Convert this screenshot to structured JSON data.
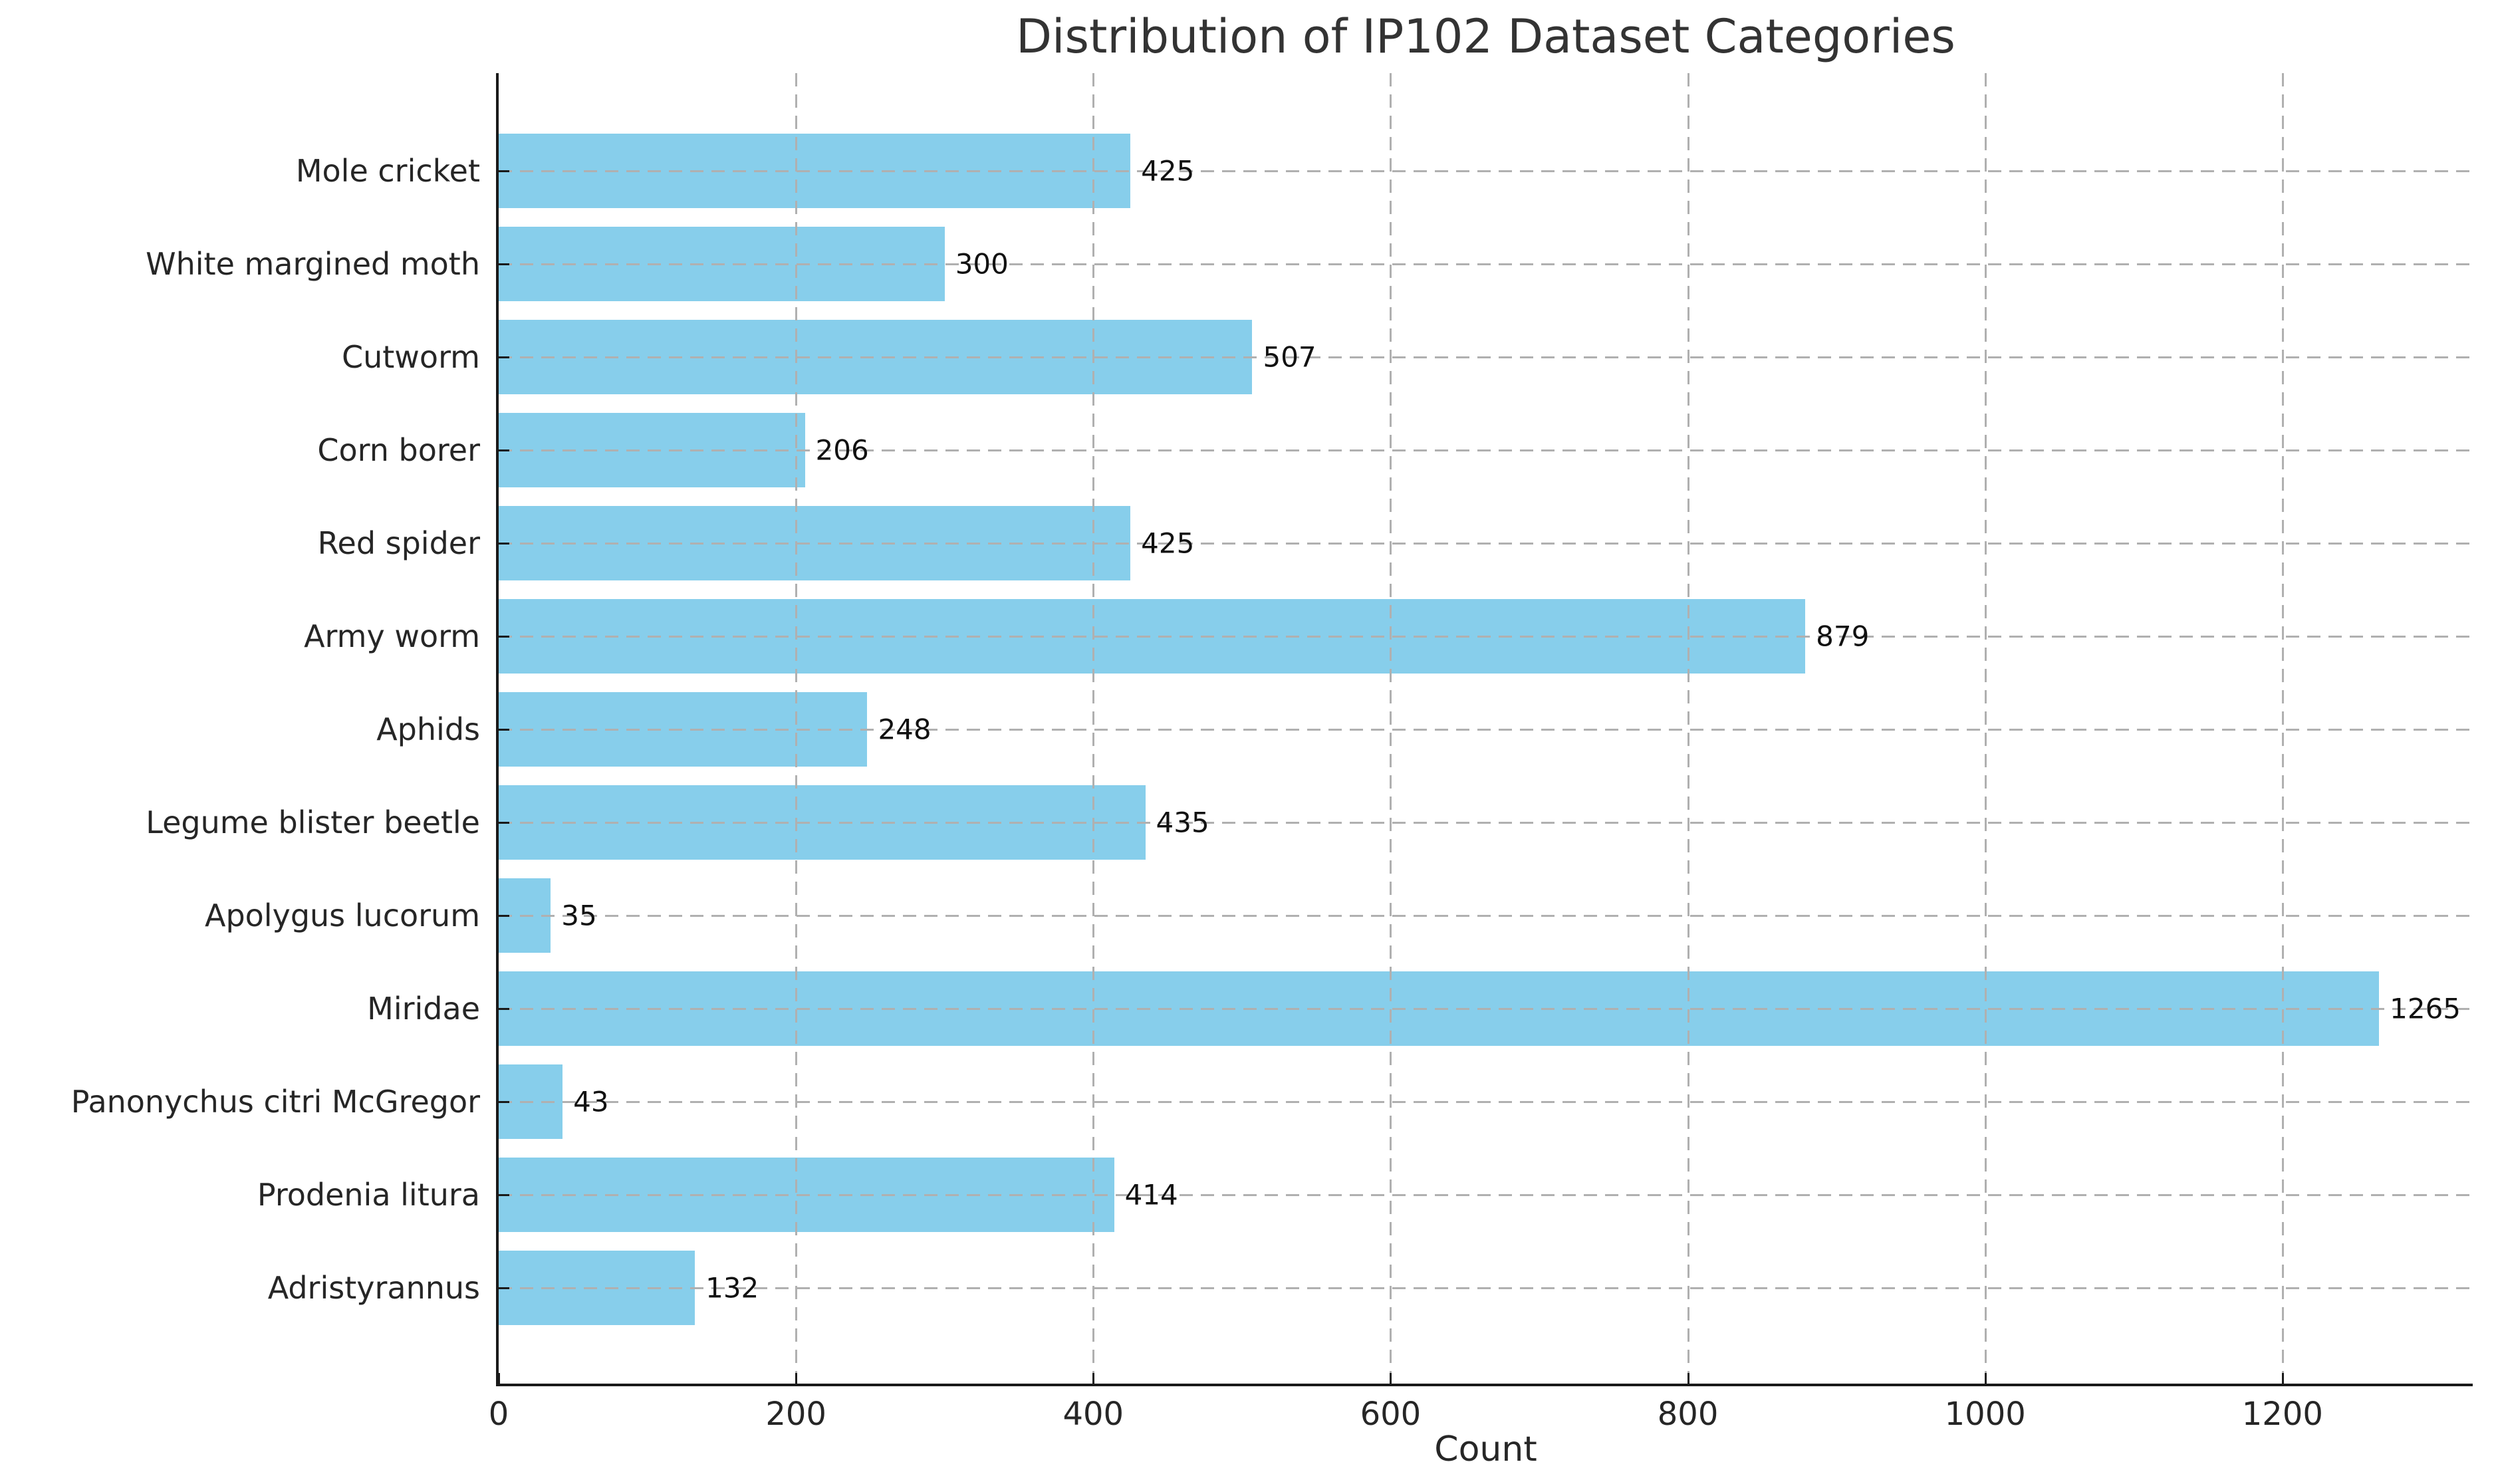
{
  "chart_data": {
    "type": "bar",
    "orientation": "horizontal",
    "title": "Distribution of IP102 Dataset Categories",
    "xlabel": "Count",
    "ylabel": "",
    "categories": [
      "Mole cricket",
      "White margined moth",
      "Cutworm",
      "Corn borer",
      "Red spider",
      "Army worm",
      "Aphids",
      "Legume blister beetle",
      "Apolygus lucorum",
      "Miridae",
      "Panonychus citri McGregor",
      "Prodenia litura",
      "Adristyrannus"
    ],
    "values": [
      425,
      300,
      507,
      206,
      425,
      879,
      248,
      435,
      35,
      1265,
      43,
      414,
      132
    ],
    "bar_value_labels": [
      "425",
      "300",
      "507",
      "206",
      "425",
      "879",
      "248",
      "435",
      "35",
      "1265",
      "43",
      "414",
      "132"
    ],
    "xticks": [
      0,
      200,
      400,
      600,
      800,
      1000,
      1200
    ],
    "xtick_labels": [
      "0",
      "200",
      "400",
      "600",
      "800",
      "1000",
      "1200"
    ],
    "xlim": [
      0,
      1328
    ],
    "grid": "dashed gridlines on both axes, drawn over bars",
    "legend": "none",
    "colors": {
      "bar": "#87CEEB",
      "grid": "#b0b0b0",
      "axis": "#1a1a1a",
      "text": "#262626",
      "background": "#ffffff"
    }
  }
}
